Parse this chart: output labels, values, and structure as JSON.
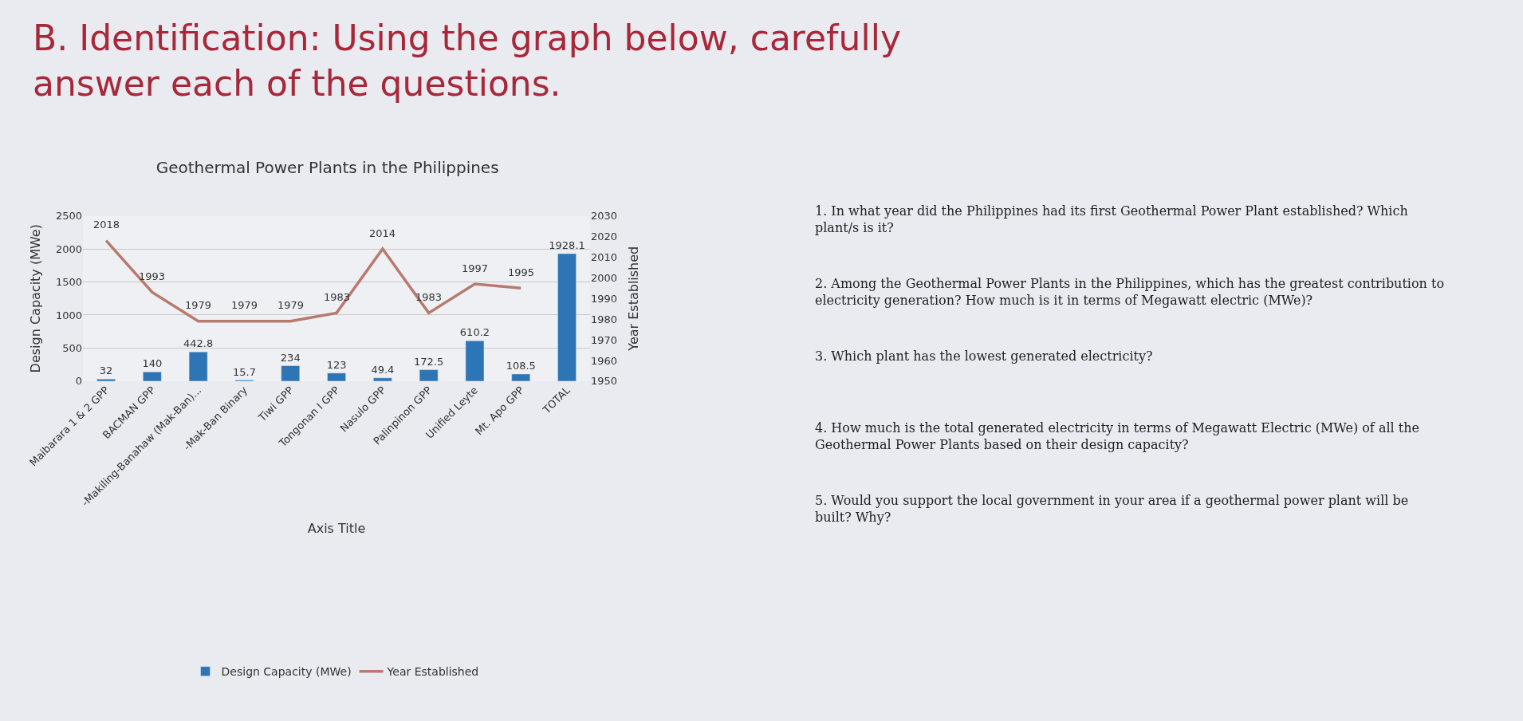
{
  "chart_data": {
    "type": "bar",
    "title": "Geothermal Power Plants in the Philippines",
    "categories": [
      "Maibarara 1 & 2 GPP",
      "BACMAN GPP",
      "-Makiling-Banahaw (Mak-Ban)...",
      "-Mak-Ban Binary",
      "Tiwi GPP",
      "Tongonan I GPP",
      "Nasulo GPP",
      "Palinpinon GPP",
      "Unified Leyte",
      "Mt. Apo GPP",
      "TOTAL"
    ],
    "series": [
      {
        "name": "Design Capacity (MWe)",
        "color": "#2e75b6",
        "values": [
          32,
          140,
          442.8,
          15.7,
          234,
          123,
          49.4,
          172.5,
          610.2,
          108.5,
          1928.1
        ]
      },
      {
        "name": "Year Established",
        "type": "line",
        "axis": "y2",
        "color": "#b87a6e",
        "values": [
          2018,
          1993,
          1979,
          1979,
          1979,
          1983,
          2014,
          1983,
          1997,
          1995,
          null
        ]
      }
    ],
    "xlabel": "Axis Title",
    "ylabel": "Design Capacity (MWe)",
    "y2label": "Year Established",
    "ylim": [
      0,
      2500
    ],
    "yticks": [
      0,
      500,
      1000,
      1500,
      2000,
      2500
    ],
    "y2lim": [
      1950,
      2030
    ],
    "y2ticks": [
      1950,
      1960,
      1970,
      1980,
      1990,
      2000,
      2010,
      2020,
      2030
    ],
    "data_labels": true,
    "grid": "y",
    "legend": "bottom",
    "marker": "none",
    "line_style": "solid",
    "annotations": [
      "B. Identification: Using the graph below, carefully answer each of the questions.",
      "1. In what year did the Philippines had its first Geothermal Power Plant established? Which plant/s is it?",
      "2. Among the Geothermal Power Plants in the Philippines, which has the greatest contribution to electricity generation? How much is it in terms of Megawatt electric (MWe)?",
      "3. Which plant has the lowest generated electricity?",
      "4. How much is the total generated electricity in terms of Megawatt Electric (MWe) of all the Geothermal Power Plants based on their design capacity?",
      "5. Would you support the local government in your area if a geothermal power plant will be built? Why?"
    ]
  }
}
